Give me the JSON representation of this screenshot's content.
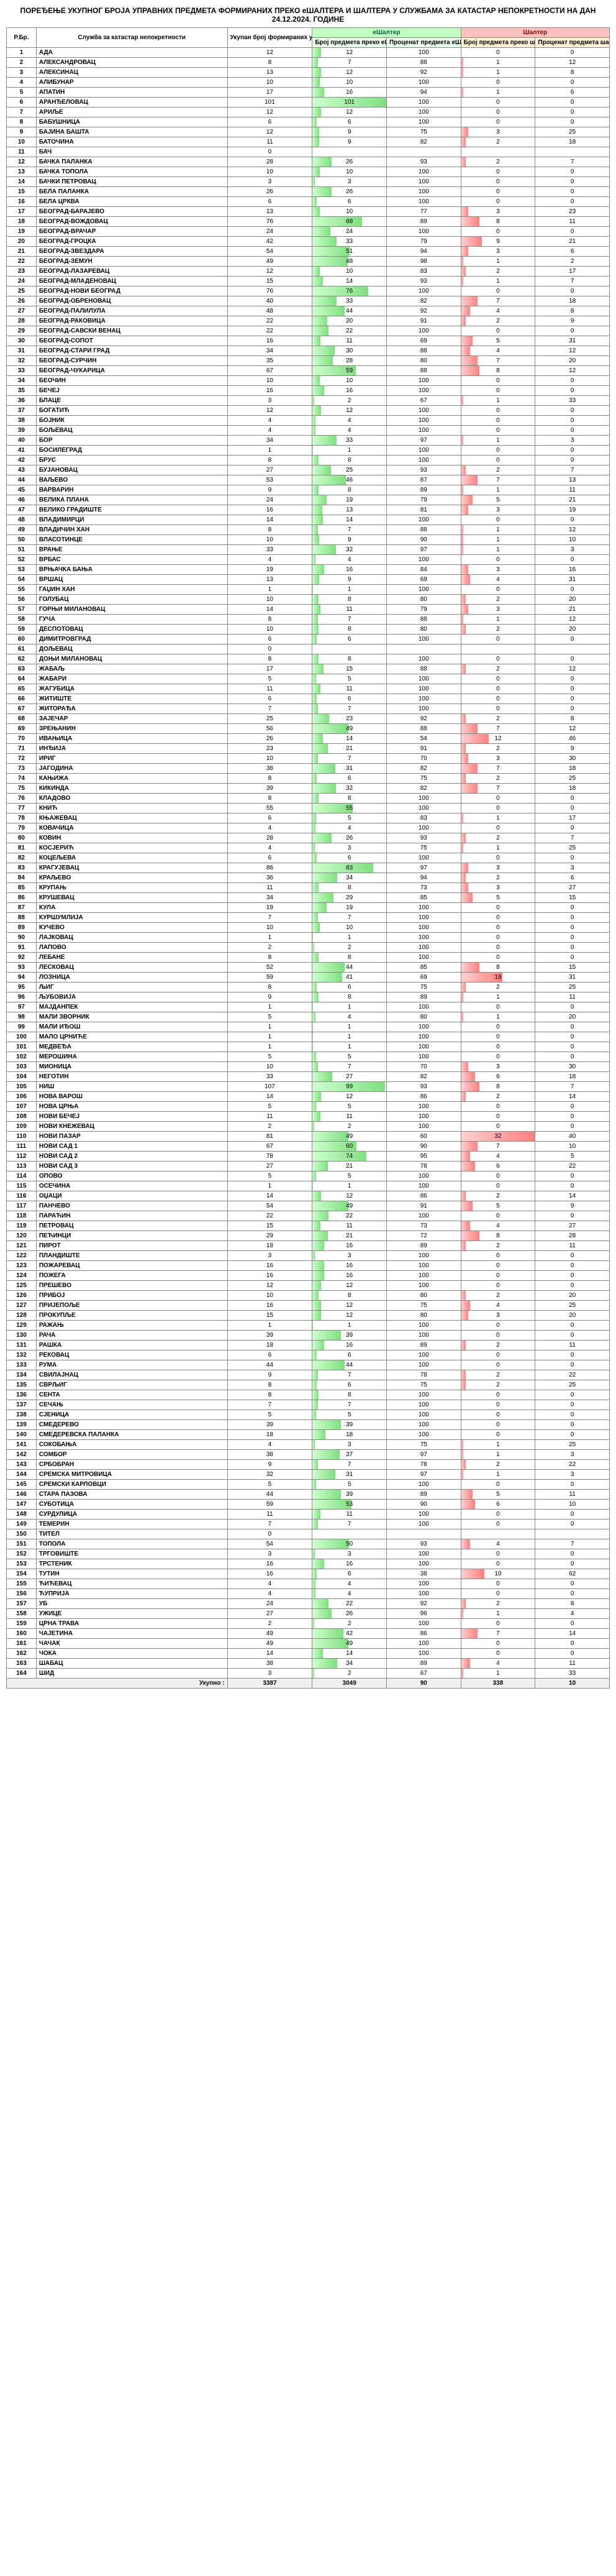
{
  "title": "ПОРЕЂЕЊЕ УКУПНОГ БРОЈА УПРАВНИХ ПРЕДМЕТА ФОРМИРАНИХ ПРЕКО еШАЛТЕРА И ШАЛТЕРА У СЛУЖБАМА ЗА КАТАСТАР НЕПОКРЕТНОСТИ НА ДАН 24.12.2024. ГОДИНЕ",
  "headers": {
    "rb": "Р.Бр.",
    "name": "Служба за катастар непокретности",
    "total": "Укупан број формираних управних предмета",
    "grp_e": "еШалтер",
    "grp_s": "Шалтер",
    "e_cnt": "Број предмета преко еШалтера",
    "e_pct": "Проценат предмета еШалтера",
    "s_cnt": "Број предмета преко шалтера",
    "s_pct": "Проценат предмета шалтера"
  },
  "footer": {
    "label": "Укупно :",
    "total": 3387,
    "e_cnt": 3049,
    "e_pct": 90,
    "s_cnt": 338,
    "s_pct": 10
  },
  "rows": [
    {
      "n": "АДА",
      "t": 12,
      "ec": 12,
      "ep": 100,
      "sc": 0,
      "sp": 0
    },
    {
      "n": "АЛЕКСАНДРОВАЦ",
      "t": 8,
      "ec": 7,
      "ep": 88,
      "sc": 1,
      "sp": 12
    },
    {
      "n": "АЛЕКСИНАЦ",
      "t": 13,
      "ec": 12,
      "ep": 92,
      "sc": 1,
      "sp": 8
    },
    {
      "n": "АЛИБУНАР",
      "t": 10,
      "ec": 10,
      "ep": 100,
      "sc": 0,
      "sp": 0
    },
    {
      "n": "АПАТИН",
      "t": 17,
      "ec": 16,
      "ep": 94,
      "sc": 1,
      "sp": 6
    },
    {
      "n": "АРАНЂЕЛОВАЦ",
      "t": 101,
      "ec": 101,
      "ep": 100,
      "sc": 0,
      "sp": 0
    },
    {
      "n": "АРИЉЕ",
      "t": 12,
      "ec": 12,
      "ep": 100,
      "sc": 0,
      "sp": 0
    },
    {
      "n": "БАБУШНИЦА",
      "t": 6,
      "ec": 6,
      "ep": 100,
      "sc": 0,
      "sp": 0
    },
    {
      "n": "БАЈИНА БАШТА",
      "t": 12,
      "ec": 9,
      "ep": 75,
      "sc": 3,
      "sp": 25
    },
    {
      "n": "БАТОЧИНА",
      "t": 11,
      "ec": 9,
      "ep": 82,
      "sc": 2,
      "sp": 18
    },
    {
      "n": "БАЧ",
      "t": 0,
      "ec": "",
      "ep": "",
      "sc": "",
      "sp": ""
    },
    {
      "n": "БАЧКА ПАЛАНКА",
      "t": 28,
      "ec": 26,
      "ep": 93,
      "sc": 2,
      "sp": 7
    },
    {
      "n": "БАЧКА ТОПОЛА",
      "t": 10,
      "ec": 10,
      "ep": 100,
      "sc": 0,
      "sp": 0
    },
    {
      "n": "БАЧКИ ПЕТРОВАЦ",
      "t": 3,
      "ec": 3,
      "ep": 100,
      "sc": 0,
      "sp": 0
    },
    {
      "n": "БЕЛА ПАЛАНКА",
      "t": 26,
      "ec": 26,
      "ep": 100,
      "sc": 0,
      "sp": 0
    },
    {
      "n": "БЕЛА ЦРКВА",
      "t": 6,
      "ec": 6,
      "ep": 100,
      "sc": 0,
      "sp": 0
    },
    {
      "n": "БЕОГРАД-БАРАЈЕВО",
      "t": 13,
      "ec": 10,
      "ep": 77,
      "sc": 3,
      "sp": 23
    },
    {
      "n": "БЕОГРАД-ВОЖДОВАЦ",
      "t": 76,
      "ec": 68,
      "ep": 89,
      "sc": 8,
      "sp": 11
    },
    {
      "n": "БЕОГРАД-ВРАЧАР",
      "t": 24,
      "ec": 24,
      "ep": 100,
      "sc": 0,
      "sp": 0
    },
    {
      "n": "БЕОГРАД-ГРОЦКА",
      "t": 42,
      "ec": 33,
      "ep": 79,
      "sc": 9,
      "sp": 21
    },
    {
      "n": "БЕОГРАД-ЗВЕЗДАРА",
      "t": 54,
      "ec": 51,
      "ep": 94,
      "sc": 3,
      "sp": 6
    },
    {
      "n": "БЕОГРАД-ЗЕМУН",
      "t": 49,
      "ec": 48,
      "ep": 98,
      "sc": 1,
      "sp": 2
    },
    {
      "n": "БЕОГРАД-ЛАЗАРЕВАЦ",
      "t": 12,
      "ec": 10,
      "ep": 83,
      "sc": 2,
      "sp": 17
    },
    {
      "n": "БЕОГРАД-МЛАДЕНОВАЦ",
      "t": 15,
      "ec": 14,
      "ep": 93,
      "sc": 1,
      "sp": 7
    },
    {
      "n": "БЕОГРАД-НОВИ БЕОГРАД",
      "t": 76,
      "ec": 76,
      "ep": 100,
      "sc": 0,
      "sp": 0
    },
    {
      "n": "БЕОГРАД-ОБРЕНОВАЦ",
      "t": 40,
      "ec": 33,
      "ep": 82,
      "sc": 7,
      "sp": 18
    },
    {
      "n": "БЕОГРАД-ПАЛИЛУЛА",
      "t": 48,
      "ec": 44,
      "ep": 92,
      "sc": 4,
      "sp": 8
    },
    {
      "n": "БЕОГРАД-РАКОВИЦА",
      "t": 22,
      "ec": 20,
      "ep": 91,
      "sc": 2,
      "sp": 9
    },
    {
      "n": "БЕОГРАД-САВСКИ ВЕНАЦ",
      "t": 22,
      "ec": 22,
      "ep": 100,
      "sc": 0,
      "sp": 0
    },
    {
      "n": "БЕОГРАД-СОПОТ",
      "t": 16,
      "ec": 11,
      "ep": 69,
      "sc": 5,
      "sp": 31
    },
    {
      "n": "БЕОГРАД-СТАРИ ГРАД",
      "t": 34,
      "ec": 30,
      "ep": 88,
      "sc": 4,
      "sp": 12
    },
    {
      "n": "БЕОГРАД-СУРЧИН",
      "t": 35,
      "ec": 28,
      "ep": 80,
      "sc": 7,
      "sp": 20
    },
    {
      "n": "БЕОГРАД-ЧУКАРИЦА",
      "t": 67,
      "ec": 59,
      "ep": 88,
      "sc": 8,
      "sp": 12
    },
    {
      "n": "БЕОЧИН",
      "t": 10,
      "ec": 10,
      "ep": 100,
      "sc": 0,
      "sp": 0
    },
    {
      "n": "БЕЧЕЈ",
      "t": 16,
      "ec": 16,
      "ep": 100,
      "sc": 0,
      "sp": 0
    },
    {
      "n": "БЛАЦЕ",
      "t": 3,
      "ec": 2,
      "ep": 67,
      "sc": 1,
      "sp": 33
    },
    {
      "n": "БОГАТИЋ",
      "t": 12,
      "ec": 12,
      "ep": 100,
      "sc": 0,
      "sp": 0
    },
    {
      "n": "БОЈНИК",
      "t": 4,
      "ec": 4,
      "ep": 100,
      "sc": 0,
      "sp": 0
    },
    {
      "n": "БОЉЕВАЦ",
      "t": 4,
      "ec": 4,
      "ep": 100,
      "sc": 0,
      "sp": 0
    },
    {
      "n": "БОР",
      "t": 34,
      "ec": 33,
      "ep": 97,
      "sc": 1,
      "sp": 3
    },
    {
      "n": "БОСИЛЕГРАД",
      "t": 1,
      "ec": 1,
      "ep": 100,
      "sc": 0,
      "sp": 0
    },
    {
      "n": "БРУС",
      "t": 8,
      "ec": 8,
      "ep": 100,
      "sc": 0,
      "sp": 0
    },
    {
      "n": "БУЈАНОВАЦ",
      "t": 27,
      "ec": 25,
      "ep": 93,
      "sc": 2,
      "sp": 7
    },
    {
      "n": "ВАЉЕВО",
      "t": 53,
      "ec": 46,
      "ep": 87,
      "sc": 7,
      "sp": 13
    },
    {
      "n": "ВАРВАРИН",
      "t": 9,
      "ec": 8,
      "ep": 89,
      "sc": 1,
      "sp": 11
    },
    {
      "n": "ВЕЛИКА ПЛАНА",
      "t": 24,
      "ec": 19,
      "ep": 79,
      "sc": 5,
      "sp": 21
    },
    {
      "n": "ВЕЛИКО ГРАДИШТЕ",
      "t": 16,
      "ec": 13,
      "ep": 81,
      "sc": 3,
      "sp": 19
    },
    {
      "n": "ВЛАДИМИРЦИ",
      "t": 14,
      "ec": 14,
      "ep": 100,
      "sc": 0,
      "sp": 0
    },
    {
      "n": "ВЛАДИЧИН ХАН",
      "t": 8,
      "ec": 7,
      "ep": 88,
      "sc": 1,
      "sp": 12
    },
    {
      "n": "ВЛАСОТИНЦЕ",
      "t": 10,
      "ec": 9,
      "ep": 90,
      "sc": 1,
      "sp": 10
    },
    {
      "n": "ВРАЊЕ",
      "t": 33,
      "ec": 32,
      "ep": 97,
      "sc": 1,
      "sp": 3
    },
    {
      "n": "ВРБАС",
      "t": 4,
      "ec": 4,
      "ep": 100,
      "sc": 0,
      "sp": 0
    },
    {
      "n": "ВРЊАЧКА БАЊА",
      "t": 19,
      "ec": 16,
      "ep": 84,
      "sc": 3,
      "sp": 16
    },
    {
      "n": "ВРШАЦ",
      "t": 13,
      "ec": 9,
      "ep": 69,
      "sc": 4,
      "sp": 31
    },
    {
      "n": "ГАЏИН ХАН",
      "t": 1,
      "ec": 1,
      "ep": 100,
      "sc": 0,
      "sp": 0
    },
    {
      "n": "ГОЛУБАЦ",
      "t": 10,
      "ec": 8,
      "ep": 80,
      "sc": 2,
      "sp": 20
    },
    {
      "n": "ГОРЊИ МИЛАНОВАЦ",
      "t": 14,
      "ec": 11,
      "ep": 79,
      "sc": 3,
      "sp": 21
    },
    {
      "n": "ГУЧА",
      "t": 8,
      "ec": 7,
      "ep": 88,
      "sc": 1,
      "sp": 12
    },
    {
      "n": "ДЕСПОТОВАЦ",
      "t": 10,
      "ec": 8,
      "ep": 80,
      "sc": 2,
      "sp": 20
    },
    {
      "n": "ДИМИТРОВГРАД",
      "t": 6,
      "ec": 6,
      "ep": 100,
      "sc": 0,
      "sp": 0
    },
    {
      "n": "ДОЉЕВАЦ",
      "t": 0,
      "ec": "",
      "ep": "",
      "sc": "",
      "sp": ""
    },
    {
      "n": "ДОЊИ МИЛАНОВАЦ",
      "t": 8,
      "ec": 8,
      "ep": 100,
      "sc": 0,
      "sp": 0
    },
    {
      "n": "ЖАБАЉ",
      "t": 17,
      "ec": 15,
      "ep": 88,
      "sc": 2,
      "sp": 12
    },
    {
      "n": "ЖАБАРИ",
      "t": 5,
      "ec": 5,
      "ep": 100,
      "sc": 0,
      "sp": 0
    },
    {
      "n": "ЖАГУБИЦА",
      "t": 11,
      "ec": 11,
      "ep": 100,
      "sc": 0,
      "sp": 0
    },
    {
      "n": "ЖИТИШТЕ",
      "t": 6,
      "ec": 6,
      "ep": 100,
      "sc": 0,
      "sp": 0
    },
    {
      "n": "ЖИТОРАЂА",
      "t": 7,
      "ec": 7,
      "ep": 100,
      "sc": 0,
      "sp": 0
    },
    {
      "n": "ЗАЈЕЧАР",
      "t": 25,
      "ec": 23,
      "ep": 92,
      "sc": 2,
      "sp": 8
    },
    {
      "n": "ЗРЕЊАНИН",
      "t": 56,
      "ec": 49,
      "ep": 88,
      "sc": 7,
      "sp": 12
    },
    {
      "n": "ИВАЊИЦА",
      "t": 26,
      "ec": 14,
      "ep": 54,
      "sc": 12,
      "sp": 46
    },
    {
      "n": "ИНЂИЈА",
      "t": 23,
      "ec": 21,
      "ep": 91,
      "sc": 2,
      "sp": 9
    },
    {
      "n": "ИРИГ",
      "t": 10,
      "ec": 7,
      "ep": 70,
      "sc": 3,
      "sp": 30
    },
    {
      "n": "ЈАГОДИНА",
      "t": 38,
      "ec": 31,
      "ep": 82,
      "sc": 7,
      "sp": 18
    },
    {
      "n": "КАЊИЖА",
      "t": 8,
      "ec": 6,
      "ep": 75,
      "sc": 2,
      "sp": 25
    },
    {
      "n": "КИКИНДА",
      "t": 39,
      "ec": 32,
      "ep": 82,
      "sc": 7,
      "sp": 18
    },
    {
      "n": "КЛАДОВО",
      "t": 8,
      "ec": 8,
      "ep": 100,
      "sc": 0,
      "sp": 0
    },
    {
      "n": "КНИЋ",
      "t": 55,
      "ec": 55,
      "ep": 100,
      "sc": 0,
      "sp": 0
    },
    {
      "n": "КЊАЖЕВАЦ",
      "t": 6,
      "ec": 5,
      "ep": 83,
      "sc": 1,
      "sp": 17
    },
    {
      "n": "КОВАЧИЦА",
      "t": 4,
      "ec": 4,
      "ep": 100,
      "sc": 0,
      "sp": 0
    },
    {
      "n": "КОВИН",
      "t": 28,
      "ec": 26,
      "ep": 93,
      "sc": 2,
      "sp": 7
    },
    {
      "n": "КОСЈЕРИЋ",
      "t": 4,
      "ec": 3,
      "ep": 75,
      "sc": 1,
      "sp": 25
    },
    {
      "n": "КОЦЕЉЕВА",
      "t": 6,
      "ec": 6,
      "ep": 100,
      "sc": 0,
      "sp": 0
    },
    {
      "n": "КРАГУЈЕВАЦ",
      "t": 86,
      "ec": 83,
      "ep": 97,
      "sc": 3,
      "sp": 3
    },
    {
      "n": "КРАЉЕВО",
      "t": 36,
      "ec": 34,
      "ep": 94,
      "sc": 2,
      "sp": 6
    },
    {
      "n": "КРУПАЊ",
      "t": 11,
      "ec": 8,
      "ep": 73,
      "sc": 3,
      "sp": 27
    },
    {
      "n": "КРУШЕВАЦ",
      "t": 34,
      "ec": 29,
      "ep": 85,
      "sc": 5,
      "sp": 15
    },
    {
      "n": "КУЛА",
      "t": 19,
      "ec": 19,
      "ep": 100,
      "sc": 0,
      "sp": 0
    },
    {
      "n": "КУРШУМЛИЈА",
      "t": 7,
      "ec": 7,
      "ep": 100,
      "sc": 0,
      "sp": 0
    },
    {
      "n": "КУЧЕВО",
      "t": 10,
      "ec": 10,
      "ep": 100,
      "sc": 0,
      "sp": 0
    },
    {
      "n": "ЛАЈКОВАЦ",
      "t": 1,
      "ec": 1,
      "ep": 100,
      "sc": 0,
      "sp": 0
    },
    {
      "n": "ЛАПОВО",
      "t": 2,
      "ec": 2,
      "ep": 100,
      "sc": 0,
      "sp": 0
    },
    {
      "n": "ЛЕБАНЕ",
      "t": 8,
      "ec": 8,
      "ep": 100,
      "sc": 0,
      "sp": 0
    },
    {
      "n": "ЛЕСКОВАЦ",
      "t": 52,
      "ec": 44,
      "ep": 85,
      "sc": 8,
      "sp": 15
    },
    {
      "n": "ЛОЗНИЦА",
      "t": 59,
      "ec": 41,
      "ep": 69,
      "sc": 18,
      "sp": 31
    },
    {
      "n": "ЉИГ",
      "t": 8,
      "ec": 6,
      "ep": 75,
      "sc": 2,
      "sp": 25
    },
    {
      "n": "ЉУБОВИЈА",
      "t": 9,
      "ec": 8,
      "ep": 89,
      "sc": 1,
      "sp": 11
    },
    {
      "n": "МАЈДАНПЕК",
      "t": 1,
      "ec": 1,
      "ep": 100,
      "sc": 0,
      "sp": 0
    },
    {
      "n": "МАЛИ ЗВОРНИК",
      "t": 5,
      "ec": 4,
      "ep": 80,
      "sc": 1,
      "sp": 20
    },
    {
      "n": "МАЛИ ИЂОШ",
      "t": 1,
      "ec": 1,
      "ep": 100,
      "sc": 0,
      "sp": 0
    },
    {
      "n": "МАЛО ЦРНИЋЕ",
      "t": 1,
      "ec": 1,
      "ep": 100,
      "sc": 0,
      "sp": 0
    },
    {
      "n": "МЕДВЕЂА",
      "t": 1,
      "ec": 1,
      "ep": 100,
      "sc": 0,
      "sp": 0
    },
    {
      "n": "МЕРОШИНА",
      "t": 5,
      "ec": 5,
      "ep": 100,
      "sc": 0,
      "sp": 0
    },
    {
      "n": "МИОНИЦА",
      "t": 10,
      "ec": 7,
      "ep": 70,
      "sc": 3,
      "sp": 30
    },
    {
      "n": "НЕГОТИН",
      "t": 33,
      "ec": 27,
      "ep": 82,
      "sc": 6,
      "sp": 18
    },
    {
      "n": "НИШ",
      "t": 107,
      "ec": 99,
      "ep": 93,
      "sc": 8,
      "sp": 7
    },
    {
      "n": "НОВА ВАРОШ",
      "t": 14,
      "ec": 12,
      "ep": 86,
      "sc": 2,
      "sp": 14
    },
    {
      "n": "НОВА ЦРЊА",
      "t": 5,
      "ec": 5,
      "ep": 100,
      "sc": 0,
      "sp": 0
    },
    {
      "n": "НОВИ БЕЧЕЈ",
      "t": 11,
      "ec": 11,
      "ep": 100,
      "sc": 0,
      "sp": 0
    },
    {
      "n": "НОВИ КНЕЖЕВАЦ",
      "t": 2,
      "ec": 2,
      "ep": 100,
      "sc": 0,
      "sp": 0
    },
    {
      "n": "НОВИ ПАЗАР",
      "t": 81,
      "ec": 49,
      "ep": 60,
      "sc": 32,
      "sp": 40
    },
    {
      "n": "НОВИ САД 1",
      "t": 67,
      "ec": 60,
      "ep": 90,
      "sc": 7,
      "sp": 10
    },
    {
      "n": "НОВИ САД 2",
      "t": 78,
      "ec": 74,
      "ep": 95,
      "sc": 4,
      "sp": 5
    },
    {
      "n": "НОВИ САД 3",
      "t": 27,
      "ec": 21,
      "ep": 78,
      "sc": 6,
      "sp": 22
    },
    {
      "n": "ОПОВО",
      "t": 5,
      "ec": 5,
      "ep": 100,
      "sc": 0,
      "sp": 0
    },
    {
      "n": "ОСЕЧИНА",
      "t": 1,
      "ec": 1,
      "ep": 100,
      "sc": 0,
      "sp": 0
    },
    {
      "n": "ОЏАЦИ",
      "t": 14,
      "ec": 12,
      "ep": 86,
      "sc": 2,
      "sp": 14
    },
    {
      "n": "ПАНЧЕВО",
      "t": 54,
      "ec": 49,
      "ep": 91,
      "sc": 5,
      "sp": 9
    },
    {
      "n": "ПАРАЋИН",
      "t": 22,
      "ec": 22,
      "ep": 100,
      "sc": 0,
      "sp": 0
    },
    {
      "n": "ПЕТРОВАЦ",
      "t": 15,
      "ec": 11,
      "ep": 73,
      "sc": 4,
      "sp": 27
    },
    {
      "n": "ПЕЋИНЦИ",
      "t": 29,
      "ec": 21,
      "ep": 72,
      "sc": 8,
      "sp": 28
    },
    {
      "n": "ПИРОТ",
      "t": 18,
      "ec": 16,
      "ep": 89,
      "sc": 2,
      "sp": 11
    },
    {
      "n": "ПЛАНДИШТЕ",
      "t": 3,
      "ec": 3,
      "ep": 100,
      "sc": 0,
      "sp": 0
    },
    {
      "n": "ПОЖАРЕВАЦ",
      "t": 16,
      "ec": 16,
      "ep": 100,
      "sc": 0,
      "sp": 0
    },
    {
      "n": "ПОЖЕГА",
      "t": 16,
      "ec": 16,
      "ep": 100,
      "sc": 0,
      "sp": 0
    },
    {
      "n": "ПРЕШЕВО",
      "t": 12,
      "ec": 12,
      "ep": 100,
      "sc": 0,
      "sp": 0
    },
    {
      "n": "ПРИБОЈ",
      "t": 10,
      "ec": 8,
      "ep": 80,
      "sc": 2,
      "sp": 20
    },
    {
      "n": "ПРИЈЕПОЉЕ",
      "t": 16,
      "ec": 12,
      "ep": 75,
      "sc": 4,
      "sp": 25
    },
    {
      "n": "ПРОКУПЉЕ",
      "t": 15,
      "ec": 12,
      "ep": 80,
      "sc": 3,
      "sp": 20
    },
    {
      "n": "РАЖАЊ",
      "t": 1,
      "ec": 1,
      "ep": 100,
      "sc": 0,
      "sp": 0
    },
    {
      "n": "РАЧА",
      "t": 39,
      "ec": 39,
      "ep": 100,
      "sc": 0,
      "sp": 0
    },
    {
      "n": "РАШКА",
      "t": 18,
      "ec": 16,
      "ep": 89,
      "sc": 2,
      "sp": 11
    },
    {
      "n": "РЕКОВАЦ",
      "t": 6,
      "ec": 6,
      "ep": 100,
      "sc": 0,
      "sp": 0
    },
    {
      "n": "РУМА",
      "t": 44,
      "ec": 44,
      "ep": 100,
      "sc": 0,
      "sp": 0
    },
    {
      "n": "СВИЛАЈНАЦ",
      "t": 9,
      "ec": 7,
      "ep": 78,
      "sc": 2,
      "sp": 22
    },
    {
      "n": "СВРЉИГ",
      "t": 8,
      "ec": 6,
      "ep": 75,
      "sc": 2,
      "sp": 25
    },
    {
      "n": "СЕНТА",
      "t": 8,
      "ec": 8,
      "ep": 100,
      "sc": 0,
      "sp": 0
    },
    {
      "n": "СЕЧАЊ",
      "t": 7,
      "ec": 7,
      "ep": 100,
      "sc": 0,
      "sp": 0
    },
    {
      "n": "СЈЕНИЦА",
      "t": 5,
      "ec": 5,
      "ep": 100,
      "sc": 0,
      "sp": 0
    },
    {
      "n": "СМЕДЕРЕВО",
      "t": 39,
      "ec": 39,
      "ep": 100,
      "sc": 0,
      "sp": 0
    },
    {
      "n": "СМЕДЕРЕВСКА ПАЛАНКА",
      "t": 18,
      "ec": 18,
      "ep": 100,
      "sc": 0,
      "sp": 0
    },
    {
      "n": "СОКОБАЊА",
      "t": 4,
      "ec": 3,
      "ep": 75,
      "sc": 1,
      "sp": 25
    },
    {
      "n": "СОМБОР",
      "t": 38,
      "ec": 37,
      "ep": 97,
      "sc": 1,
      "sp": 3
    },
    {
      "n": "СРБОБРАН",
      "t": 9,
      "ec": 7,
      "ep": 78,
      "sc": 2,
      "sp": 22
    },
    {
      "n": "СРЕМСКА МИТРОВИЦА",
      "t": 32,
      "ec": 31,
      "ep": 97,
      "sc": 1,
      "sp": 3
    },
    {
      "n": "СРЕМСКИ КАРЛОВЦИ",
      "t": 5,
      "ec": 5,
      "ep": 100,
      "sc": 0,
      "sp": 0
    },
    {
      "n": "СТАРА ПАЗОВА",
      "t": 44,
      "ec": 39,
      "ep": 89,
      "sc": 5,
      "sp": 11
    },
    {
      "n": "СУБОТИЦА",
      "t": 59,
      "ec": 53,
      "ep": 90,
      "sc": 6,
      "sp": 10
    },
    {
      "n": "СУРДУЛИЦА",
      "t": 11,
      "ec": 11,
      "ep": 100,
      "sc": 0,
      "sp": 0
    },
    {
      "n": "ТЕМЕРИН",
      "t": 7,
      "ec": 7,
      "ep": 100,
      "sc": 0,
      "sp": 0
    },
    {
      "n": "ТИТЕЛ",
      "t": 0,
      "ec": "",
      "ep": "",
      "sc": "",
      "sp": ""
    },
    {
      "n": "ТОПОЛА",
      "t": 54,
      "ec": 50,
      "ep": 93,
      "sc": 4,
      "sp": 7
    },
    {
      "n": "ТРГОВИШТЕ",
      "t": 3,
      "ec": 3,
      "ep": 100,
      "sc": 0,
      "sp": 0
    },
    {
      "n": "ТРСТЕНИК",
      "t": 16,
      "ec": 16,
      "ep": 100,
      "sc": 0,
      "sp": 0
    },
    {
      "n": "ТУТИН",
      "t": 16,
      "ec": 6,
      "ep": 38,
      "sc": 10,
      "sp": 62
    },
    {
      "n": "ЋИЋЕВАЦ",
      "t": 4,
      "ec": 4,
      "ep": 100,
      "sc": 0,
      "sp": 0
    },
    {
      "n": "ЋУПРИЈА",
      "t": 4,
      "ec": 4,
      "ep": 100,
      "sc": 0,
      "sp": 0
    },
    {
      "n": "УБ",
      "t": 24,
      "ec": 22,
      "ep": 92,
      "sc": 2,
      "sp": 8
    },
    {
      "n": "УЖИЦЕ",
      "t": 27,
      "ec": 26,
      "ep": 96,
      "sc": 1,
      "sp": 4
    },
    {
      "n": "ЦРНА ТРАВА",
      "t": 2,
      "ec": 2,
      "ep": 100,
      "sc": 0,
      "sp": 0
    },
    {
      "n": "ЧАЈЕТИНА",
      "t": 49,
      "ec": 42,
      "ep": 86,
      "sc": 7,
      "sp": 14
    },
    {
      "n": "ЧАЧАК",
      "t": 49,
      "ec": 49,
      "ep": 100,
      "sc": 0,
      "sp": 0
    },
    {
      "n": "ЧОКА",
      "t": 14,
      "ec": 14,
      "ep": 100,
      "sc": 0,
      "sp": 0
    },
    {
      "n": "ШАБАЦ",
      "t": 38,
      "ec": 34,
      "ep": 89,
      "sc": 4,
      "sp": 11
    },
    {
      "n": "ШИД",
      "t": 3,
      "ec": 2,
      "ep": 67,
      "sc": 1,
      "sp": 33
    }
  ],
  "maxE": 101,
  "maxS": 32
}
